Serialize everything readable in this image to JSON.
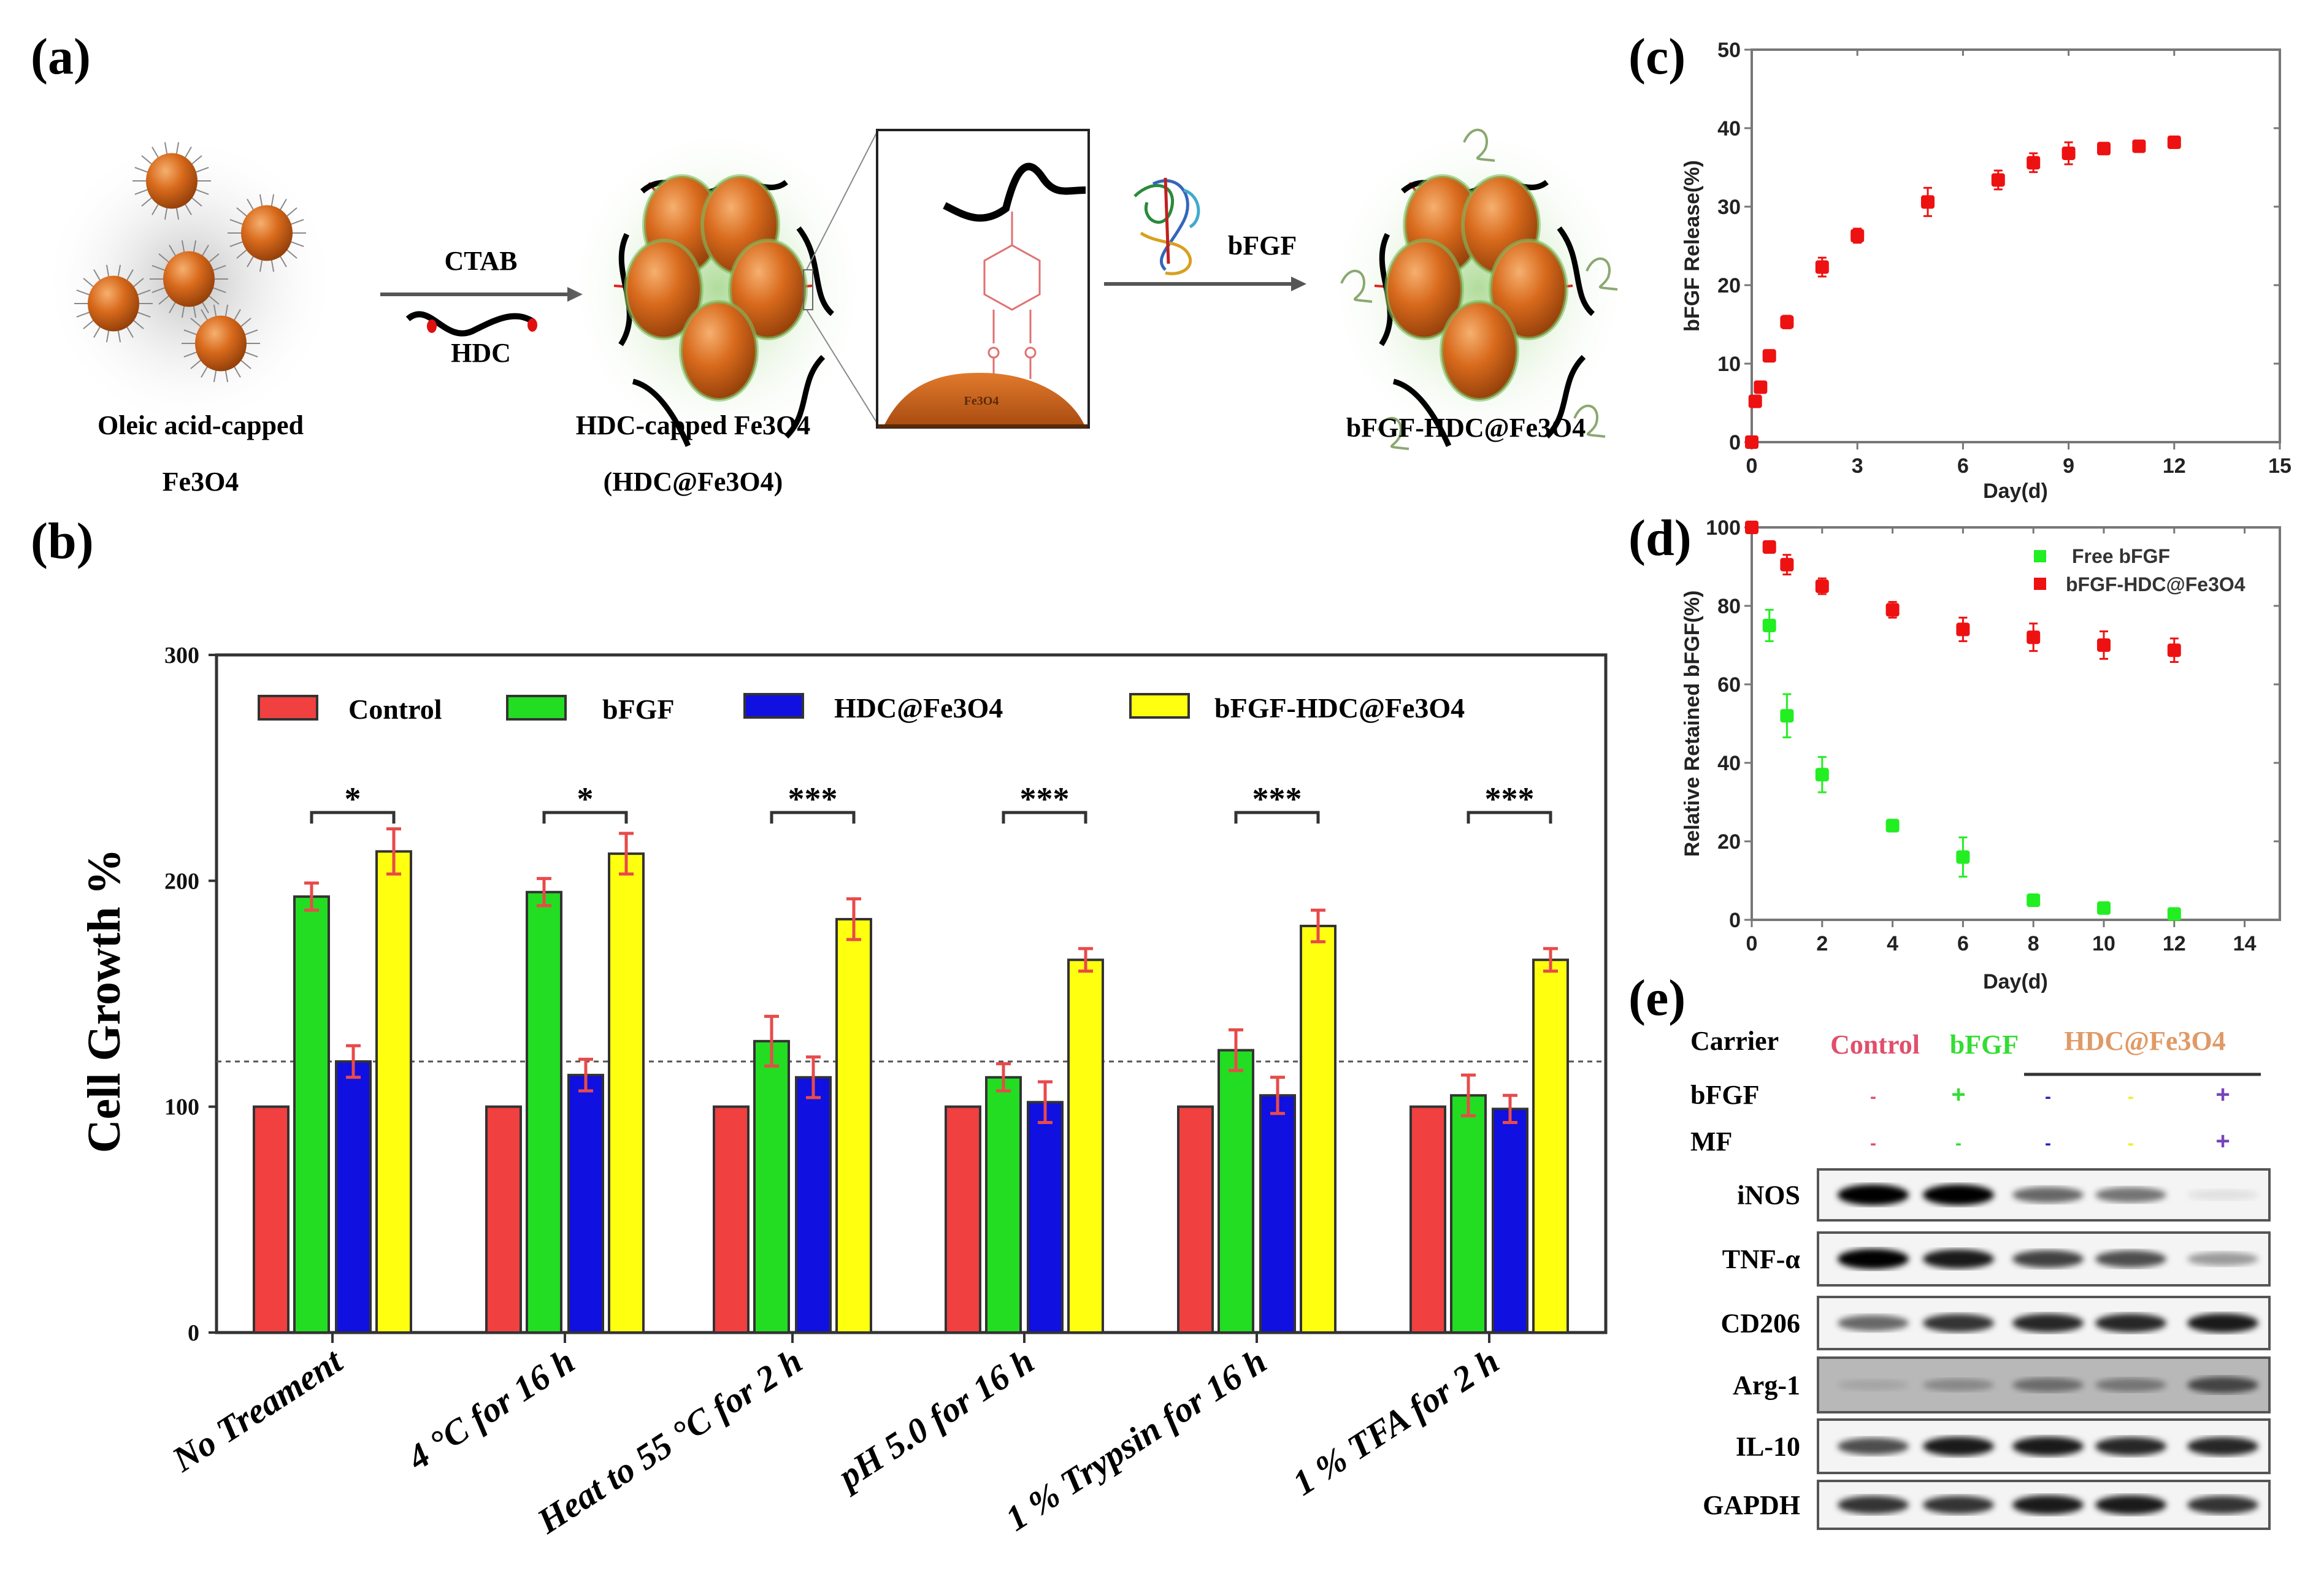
{
  "panel_labels": {
    "a": "(a)",
    "b": "(b)",
    "c": "(c)",
    "d": "(d)",
    "e": "(e)"
  },
  "scheme": {
    "step1_label_line1": "Oleic acid-capped",
    "step1_label_line2": "Fe3O4",
    "arrow1_top": "CTAB",
    "arrow1_bottom": "HDC",
    "step2_label_line1": "HDC-capped Fe3O4",
    "step2_label_line2": "(HDC@Fe3O4)",
    "inset_core": "Fe3O4",
    "arrow2_label": "bFGF",
    "step3_label": "bFGF-HDC@Fe3O4"
  },
  "colors": {
    "control": "#f04040",
    "bfgf": "#22dd22",
    "hdc": "#1010e0",
    "bfgf_hdc": "#ffff10",
    "error": "#e84a4a",
    "c_marker": "#ee1111",
    "d_free": "#22ee22",
    "d_hdc": "#ee1111"
  },
  "chart_data": [
    {
      "id": "b",
      "type": "bar",
      "ylabel": "Cell   Growth %",
      "ylim": [
        0,
        300
      ],
      "yticks": [
        0,
        100,
        200,
        300
      ],
      "reference_line": 120,
      "legend_position": "top",
      "categories": [
        "No Treament",
        "4 °C for 16 h",
        "Heat to 55 °C for 2 h",
        "pH 5.0 for 16 h",
        "1 % Trypsin for 16 h",
        "1 % TFA for 2 h"
      ],
      "series": [
        {
          "name": "Control",
          "values": [
            100,
            100,
            100,
            100,
            100,
            100
          ],
          "errors": [
            0,
            0,
            0,
            0,
            0,
            0
          ]
        },
        {
          "name": "bFGF",
          "values": [
            193,
            195,
            129,
            113,
            125,
            105
          ],
          "errors": [
            6,
            6,
            11,
            6,
            9,
            9
          ]
        },
        {
          "name": "HDC@Fe3O4",
          "values": [
            120,
            114,
            113,
            102,
            105,
            99
          ],
          "errors": [
            7,
            7,
            9,
            9,
            8,
            6
          ]
        },
        {
          "name": "bFGF-HDC@Fe3O4",
          "values": [
            213,
            212,
            183,
            165,
            180,
            165
          ],
          "errors": [
            10,
            9,
            9,
            5,
            7,
            5
          ]
        }
      ],
      "significance": [
        "*",
        "*",
        "***",
        "***",
        "***",
        "***"
      ]
    },
    {
      "id": "c",
      "type": "scatter",
      "xlabel": "Day(d)",
      "ylabel": "bFGF Release(%)",
      "xlim": [
        0,
        15
      ],
      "ylim": [
        0,
        50
      ],
      "xticks": [
        0,
        3,
        6,
        9,
        12,
        15
      ],
      "yticks": [
        0,
        10,
        20,
        30,
        40,
        50
      ],
      "series": [
        {
          "name": "bFGF-HDC@Fe3O4",
          "x": [
            0,
            0.1,
            0.25,
            0.5,
            1,
            2,
            3,
            5,
            7,
            8,
            9,
            10,
            11,
            12
          ],
          "y": [
            0,
            5.2,
            7,
            11,
            15.3,
            22.3,
            26.3,
            30.6,
            33.4,
            35.6,
            36.8,
            37.4,
            37.7,
            38.2
          ],
          "err": [
            0,
            0.3,
            0.5,
            0.6,
            0.8,
            1.2,
            0.9,
            1.8,
            1.2,
            1.2,
            1.4,
            0.6,
            0.7,
            0.3
          ]
        }
      ]
    },
    {
      "id": "d",
      "type": "scatter",
      "xlabel": "Day(d)",
      "ylabel": "Relative Retained bFGF(%)",
      "xlim": [
        0,
        15
      ],
      "ylim": [
        0,
        100
      ],
      "xticks": [
        0,
        2,
        4,
        6,
        8,
        10,
        12,
        14
      ],
      "yticks": [
        0,
        20,
        40,
        60,
        80,
        100
      ],
      "legend_position": "top-right",
      "series": [
        {
          "name": "Free bFGF",
          "x": [
            0.5,
            1,
            2,
            4,
            6,
            8,
            10,
            12
          ],
          "y": [
            75,
            52,
            37,
            24,
            16,
            5,
            3,
            1.5
          ],
          "err": [
            4,
            5.5,
            4.5,
            1.5,
            5,
            1.5,
            0.6,
            0.5
          ]
        },
        {
          "name": "bFGF-HDC@Fe3O4",
          "x": [
            0,
            0.5,
            1,
            2,
            4,
            6,
            8,
            10,
            12
          ],
          "y": [
            100,
            95,
            90.5,
            85,
            79,
            74,
            72,
            70,
            68.7
          ],
          "err": [
            0,
            1.5,
            2.5,
            2,
            2,
            3,
            3.5,
            3.5,
            3
          ]
        }
      ]
    }
  ],
  "blot": {
    "header": {
      "carrier": "Carrier",
      "bfgf": "bFGF",
      "mf": "MF"
    },
    "lanes": [
      {
        "carrier": "Control",
        "bfgf": "-",
        "mf": "-",
        "color": "#e0506a"
      },
      {
        "carrier": "bFGF",
        "bfgf": "+",
        "mf": "-",
        "color": "#33dd33"
      },
      {
        "carrier": "",
        "bfgf": "-",
        "mf": "-",
        "color": "#2222cc"
      },
      {
        "carrier": "",
        "bfgf": "-",
        "mf": "-",
        "color": "#eeee22"
      },
      {
        "carrier": "",
        "bfgf": "+",
        "mf": "+",
        "color": "#7744bb"
      }
    ],
    "group_label": "HDC@Fe3O4",
    "group_color": "#e09a66",
    "rows": [
      {
        "name": "iNOS",
        "intensity": [
          1.0,
          1.0,
          0.55,
          0.5,
          0.08
        ]
      },
      {
        "name": "TNF-α",
        "intensity": [
          0.95,
          0.85,
          0.7,
          0.65,
          0.35
        ]
      },
      {
        "name": "CD206",
        "intensity": [
          0.55,
          0.75,
          0.8,
          0.8,
          0.85
        ]
      },
      {
        "name": "Arg-1",
        "intensity": [
          0.1,
          0.25,
          0.4,
          0.35,
          0.6
        ]
      },
      {
        "name": "IL-10",
        "intensity": [
          0.65,
          0.85,
          0.85,
          0.8,
          0.8
        ]
      },
      {
        "name": "GAPDH",
        "intensity": [
          0.75,
          0.75,
          0.85,
          0.85,
          0.75
        ]
      }
    ]
  }
}
